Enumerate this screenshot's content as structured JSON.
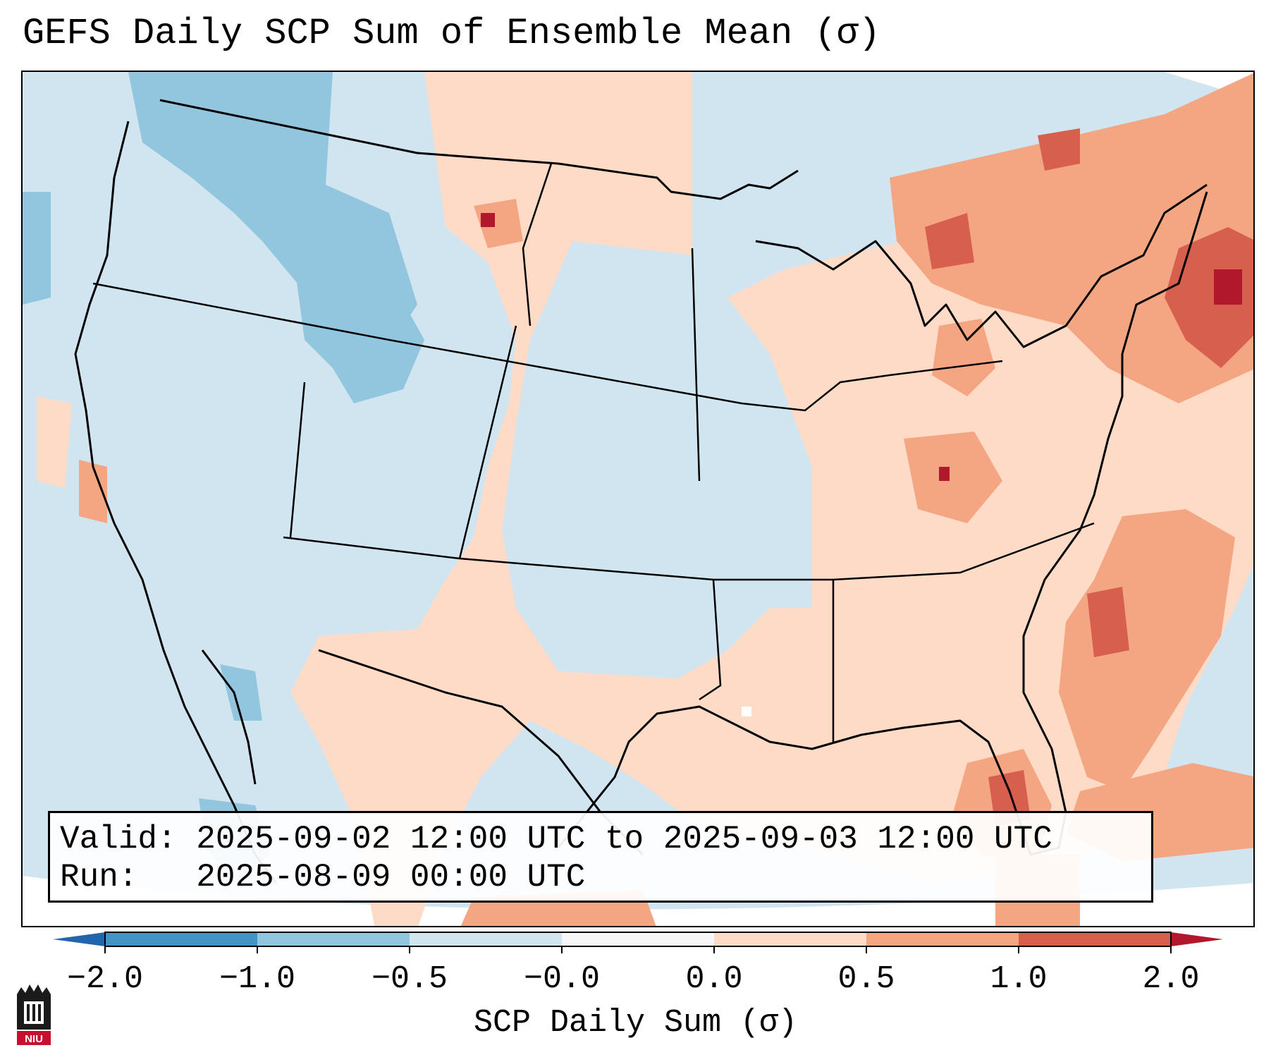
{
  "title": "GEFS Daily SCP Sum of Ensemble Mean (σ)",
  "info": {
    "valid_label": "Valid:",
    "valid_value": "2025-09-02 12:00 UTC to 2025-09-03 12:00 UTC",
    "run_label": "Run:",
    "run_value": "2025-08-09 00:00 UTC"
  },
  "colorbar": {
    "label": "SCP Daily Sum (σ)",
    "ticks": [
      "−2.0",
      "−1.0",
      "−0.5",
      "−0.0",
      "0.0",
      "0.5",
      "1.0",
      "2.0"
    ],
    "colors": [
      "#4393c3",
      "#92c5de",
      "#d1e5f0",
      "#f7f7f7",
      "#fddbc7",
      "#f4a582",
      "#d6604d"
    ],
    "under_color": "#2166ac",
    "over_color": "#b2182b"
  },
  "palette": {
    "neg_strong": "#92c5de",
    "neg_weak": "#d1e5f0",
    "pos_weak": "#fddbc7",
    "pos_mid": "#f4a582",
    "pos_strong": "#d6604d",
    "pos_max": "#b2182b"
  },
  "logo_text": "NIU"
}
